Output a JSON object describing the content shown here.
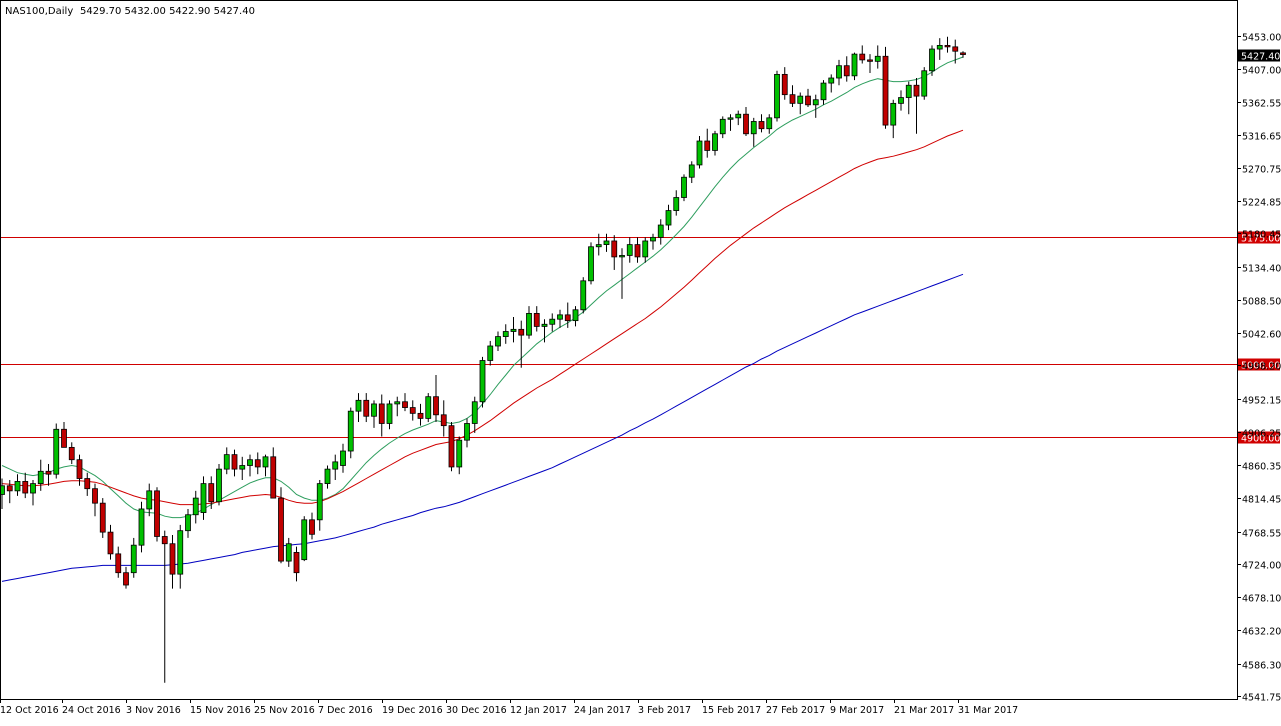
{
  "header": {
    "symbol": "NAS100,Daily",
    "ohlc": "5429.70 5432.00 5422.90 5427.40"
  },
  "colors": {
    "background": "#ffffff",
    "frame": "#000000",
    "bull": "#00c000",
    "bear": "#c00000",
    "ma_fast": "#2e9e5e",
    "ma_mid": "#d00000",
    "ma_slow": "#0000c0",
    "hline": "#d00000"
  },
  "chart_data": {
    "type": "candlestick",
    "title": "NAS100,Daily",
    "grid": false,
    "ylim": [
      4541.75,
      5476.0
    ],
    "y_ticks": [
      "5453.00",
      "5407.00",
      "5362.55",
      "5316.65",
      "5270.75",
      "5224.85",
      "5180.45",
      "5134.40",
      "5088.50",
      "5042.60",
      "4998.20",
      "4952.15",
      "4906.25",
      "4860.35",
      "4814.45",
      "4768.55",
      "4724.00",
      "4678.10",
      "4632.20",
      "4586.30",
      "4541.75"
    ],
    "x_labels": [
      "12 Oct 2016",
      "24 Oct 2016",
      "3 Nov 2016",
      "15 Nov 2016",
      "25 Nov 2016",
      "7 Dec 2016",
      "19 Dec 2016",
      "30 Dec 2016",
      "12 Jan 2017",
      "24 Jan 2017",
      "3 Feb 2017",
      "15 Feb 2017",
      "27 Feb 2017",
      "9 Mar 2017",
      "21 Mar 2017",
      "31 Mar 2017"
    ],
    "current_price": "5427.40",
    "horizontal_lines": [
      "5175.00",
      "5000.00",
      "4900.00"
    ],
    "candles": [
      [
        4820,
        4842,
        4800,
        4832
      ],
      [
        4832,
        4840,
        4808,
        4825
      ],
      [
        4825,
        4848,
        4818,
        4838
      ],
      [
        4838,
        4850,
        4815,
        4822
      ],
      [
        4822,
        4840,
        4805,
        4835
      ],
      [
        4835,
        4868,
        4825,
        4852
      ],
      [
        4852,
        4862,
        4832,
        4848
      ],
      [
        4848,
        4918,
        4842,
        4910
      ],
      [
        4910,
        4920,
        4888,
        4885
      ],
      [
        4885,
        4892,
        4862,
        4868
      ],
      [
        4868,
        4875,
        4832,
        4842
      ],
      [
        4842,
        4850,
        4818,
        4828
      ],
      [
        4828,
        4835,
        4790,
        4808
      ],
      [
        4808,
        4815,
        4760,
        4768
      ],
      [
        4768,
        4778,
        4730,
        4738
      ],
      [
        4738,
        4748,
        4705,
        4712
      ],
      [
        4712,
        4720,
        4690,
        4695
      ],
      [
        4712,
        4760,
        4705,
        4750
      ],
      [
        4750,
        4810,
        4740,
        4800
      ],
      [
        4800,
        4835,
        4790,
        4825
      ],
      [
        4825,
        4830,
        4755,
        4762
      ],
      [
        4762,
        4770,
        4560,
        4752
      ],
      [
        4752,
        4764,
        4690,
        4710
      ],
      [
        4710,
        4778,
        4690,
        4770
      ],
      [
        4770,
        4800,
        4760,
        4792
      ],
      [
        4792,
        4825,
        4780,
        4815
      ],
      [
        4795,
        4845,
        4785,
        4835
      ],
      [
        4835,
        4845,
        4800,
        4810
      ],
      [
        4810,
        4862,
        4805,
        4855
      ],
      [
        4855,
        4885,
        4848,
        4875
      ],
      [
        4875,
        4882,
        4845,
        4855
      ],
      [
        4855,
        4872,
        4840,
        4860
      ],
      [
        4860,
        4875,
        4845,
        4868
      ],
      [
        4868,
        4878,
        4848,
        4858
      ],
      [
        4858,
        4875,
        4845,
        4872
      ],
      [
        4872,
        4885,
        4815,
        4815
      ],
      [
        4815,
        4830,
        4725,
        4728
      ],
      [
        4728,
        4760,
        4720,
        4752
      ],
      [
        4740,
        4748,
        4700,
        4712
      ],
      [
        4730,
        4790,
        4728,
        4785
      ],
      [
        4785,
        4795,
        4758,
        4765
      ],
      [
        4785,
        4840,
        4770,
        4835
      ],
      [
        4835,
        4860,
        4828,
        4855
      ],
      [
        4855,
        4875,
        4840,
        4865
      ],
      [
        4860,
        4890,
        4850,
        4880
      ],
      [
        4880,
        4940,
        4870,
        4935
      ],
      [
        4935,
        4960,
        4920,
        4950
      ],
      [
        4950,
        4960,
        4920,
        4928
      ],
      [
        4928,
        4950,
        4912,
        4945
      ],
      [
        4945,
        4958,
        4900,
        4918
      ],
      [
        4918,
        4950,
        4910,
        4945
      ],
      [
        4945,
        4955,
        4928,
        4948
      ],
      [
        4948,
        4960,
        4935,
        4940
      ],
      [
        4940,
        4950,
        4922,
        4932
      ],
      [
        4932,
        4945,
        4915,
        4925
      ],
      [
        4925,
        4960,
        4920,
        4955
      ],
      [
        4955,
        4985,
        4920,
        4930
      ],
      [
        4930,
        4950,
        4900,
        4915
      ],
      [
        4915,
        4920,
        4852,
        4858
      ],
      [
        4858,
        4900,
        4848,
        4895
      ],
      [
        4895,
        4925,
        4885,
        4918
      ],
      [
        4918,
        4955,
        4905,
        4948
      ],
      [
        4948,
        5010,
        4940,
        5005
      ],
      [
        5005,
        5032,
        4998,
        5025
      ],
      [
        5025,
        5045,
        5018,
        5038
      ],
      [
        5038,
        5055,
        5028,
        5045
      ],
      [
        5045,
        5065,
        5030,
        5048
      ],
      [
        5048,
        5060,
        4995,
        5040
      ],
      [
        5040,
        5080,
        5035,
        5070
      ],
      [
        5070,
        5080,
        5045,
        5052
      ],
      [
        5052,
        5062,
        5030,
        5055
      ],
      [
        5055,
        5070,
        5045,
        5062
      ],
      [
        5062,
        5075,
        5050,
        5068
      ],
      [
        5068,
        5085,
        5050,
        5060
      ],
      [
        5060,
        5080,
        5052,
        5075
      ],
      [
        5075,
        5120,
        5070,
        5115
      ],
      [
        5115,
        5168,
        5110,
        5162
      ],
      [
        5162,
        5180,
        5150,
        5165
      ],
      [
        5165,
        5180,
        5155,
        5170
      ],
      [
        5170,
        5178,
        5130,
        5148
      ],
      [
        5148,
        5160,
        5090,
        5150
      ],
      [
        5150,
        5175,
        5140,
        5165
      ],
      [
        5165,
        5175,
        5140,
        5148
      ],
      [
        5148,
        5175,
        5140,
        5170
      ],
      [
        5170,
        5180,
        5158,
        5175
      ],
      [
        5175,
        5200,
        5165,
        5192
      ],
      [
        5192,
        5220,
        5185,
        5212
      ],
      [
        5212,
        5240,
        5205,
        5230
      ],
      [
        5230,
        5262,
        5225,
        5258
      ],
      [
        5258,
        5280,
        5250,
        5275
      ],
      [
        5275,
        5315,
        5270,
        5308
      ],
      [
        5308,
        5325,
        5285,
        5295
      ],
      [
        5295,
        5322,
        5288,
        5318
      ],
      [
        5318,
        5342,
        5312,
        5338
      ],
      [
        5338,
        5345,
        5322,
        5340
      ],
      [
        5340,
        5350,
        5330,
        5345
      ],
      [
        5345,
        5355,
        5315,
        5318
      ],
      [
        5318,
        5340,
        5300,
        5335
      ],
      [
        5335,
        5345,
        5320,
        5325
      ],
      [
        5325,
        5345,
        5318,
        5340
      ],
      [
        5340,
        5405,
        5335,
        5400
      ],
      [
        5400,
        5410,
        5365,
        5372
      ],
      [
        5372,
        5385,
        5355,
        5360
      ],
      [
        5360,
        5375,
        5345,
        5370
      ],
      [
        5370,
        5380,
        5355,
        5358
      ],
      [
        5358,
        5372,
        5340,
        5365
      ],
      [
        5365,
        5392,
        5358,
        5388
      ],
      [
        5388,
        5400,
        5375,
        5395
      ],
      [
        5395,
        5420,
        5385,
        5412
      ],
      [
        5412,
        5425,
        5390,
        5398
      ],
      [
        5398,
        5430,
        5392,
        5428
      ],
      [
        5428,
        5440,
        5415,
        5420
      ],
      [
        5420,
        5428,
        5402,
        5418
      ],
      [
        5418,
        5440,
        5408,
        5425
      ],
      [
        5425,
        5438,
        5325,
        5330
      ],
      [
        5330,
        5365,
        5312,
        5360
      ],
      [
        5360,
        5378,
        5350,
        5368
      ],
      [
        5368,
        5390,
        5345,
        5385
      ],
      [
        5385,
        5395,
        5318,
        5370
      ],
      [
        5370,
        5410,
        5365,
        5405
      ],
      [
        5405,
        5440,
        5398,
        5435
      ],
      [
        5435,
        5450,
        5420,
        5440
      ],
      [
        5440,
        5452,
        5430,
        5438
      ],
      [
        5438,
        5448,
        5415,
        5432
      ],
      [
        5429.7,
        5432,
        5422.9,
        5427.4
      ]
    ],
    "series": [
      {
        "name": "",
        "type": "ma",
        "values": [
          4860,
          4855,
          4850,
          4848,
          4846,
          4848,
          4850,
          4855,
          4858,
          4860,
          4858,
          4852,
          4846,
          4838,
          4828,
          4818,
          4808,
          4800,
          4796,
          4795,
          4794,
          4790,
          4788,
          4788,
          4790,
          4794,
          4800,
          4806,
          4812,
          4818,
          4824,
          4830,
          4836,
          4840,
          4843,
          4843,
          4838,
          4830,
          4820,
          4815,
          4812,
          4812,
          4815,
          4820,
          4828,
          4840,
          4852,
          4864,
          4874,
          4883,
          4891,
          4898,
          4904,
          4909,
          4913,
          4917,
          4922,
          4920,
          4918,
          4920,
          4925,
          4933,
          4945,
          4958,
          4972,
          4985,
          4998,
          5008,
          5018,
          5028,
          5036,
          5044,
          5051,
          5057,
          5064,
          5072,
          5082,
          5092,
          5101,
          5109,
          5117,
          5125,
          5133,
          5141,
          5149,
          5158,
          5168,
          5179,
          5190,
          5203,
          5217,
          5231,
          5245,
          5258,
          5270,
          5281,
          5290,
          5299,
          5307,
          5315,
          5324,
          5331,
          5337,
          5342,
          5347,
          5352,
          5358,
          5363,
          5369,
          5375,
          5382,
          5387,
          5391,
          5394,
          5392,
          5390,
          5390,
          5391,
          5393,
          5397,
          5403,
          5410,
          5416,
          5420,
          5424
        ]
      },
      {
        "name": "",
        "type": "ma",
        "values": [
          4835,
          4834,
          4833,
          4832,
          4832,
          4833,
          4834,
          4836,
          4838,
          4839,
          4839,
          4838,
          4837,
          4834,
          4830,
          4826,
          4822,
          4818,
          4815,
          4813,
          4812,
          4810,
          4808,
          4806,
          4806,
          4806,
          4807,
          4808,
          4810,
          4812,
          4814,
          4816,
          4818,
          4819,
          4820,
          4819,
          4816,
          4812,
          4809,
          4808,
          4808,
          4810,
          4814,
          4819,
          4824,
          4830,
          4836,
          4842,
          4848,
          4854,
          4860,
          4866,
          4872,
          4877,
          4881,
          4885,
          4889,
          4891,
          4893,
          4897,
          4902,
          4908,
          4915,
          4922,
          4930,
          4938,
          4946,
          4953,
          4960,
          4967,
          4973,
          4979,
          4986,
          4993,
          5000,
          5007,
          5014,
          5021,
          5028,
          5035,
          5042,
          5049,
          5056,
          5063,
          5071,
          5079,
          5088,
          5097,
          5106,
          5116,
          5126,
          5136,
          5146,
          5155,
          5164,
          5172,
          5180,
          5188,
          5195,
          5202,
          5209,
          5216,
          5222,
          5228,
          5234,
          5240,
          5246,
          5252,
          5258,
          5264,
          5270,
          5275,
          5279,
          5283,
          5285,
          5287,
          5290,
          5293,
          5296,
          5300,
          5305,
          5310,
          5315,
          5319,
          5323
        ]
      },
      {
        "name": "",
        "type": "ma",
        "values": [
          4700,
          4702,
          4704,
          4706,
          4708,
          4710,
          4712,
          4714,
          4716,
          4718,
          4719,
          4720,
          4721,
          4722,
          4722,
          4722,
          4722,
          4722,
          4722,
          4722,
          4722,
          4722,
          4723,
          4724,
          4725,
          4727,
          4729,
          4731,
          4733,
          4735,
          4737,
          4740,
          4742,
          4744,
          4746,
          4748,
          4749,
          4750,
          4751,
          4752,
          4754,
          4756,
          4758,
          4760,
          4763,
          4766,
          4769,
          4772,
          4775,
          4779,
          4782,
          4785,
          4788,
          4791,
          4795,
          4798,
          4801,
          4803,
          4806,
          4809,
          4813,
          4817,
          4821,
          4825,
          4829,
          4833,
          4837,
          4841,
          4845,
          4849,
          4853,
          4857,
          4862,
          4867,
          4872,
          4877,
          4882,
          4887,
          4892,
          4897,
          4902,
          4908,
          4913,
          4919,
          4924,
          4930,
          4936,
          4942,
          4948,
          4954,
          4960,
          4966,
          4972,
          4978,
          4984,
          4990,
          4996,
          5001,
          5007,
          5012,
          5018,
          5023,
          5028,
          5033,
          5038,
          5043,
          5048,
          5053,
          5058,
          5063,
          5068,
          5072,
          5076,
          5080,
          5084,
          5088,
          5092,
          5096,
          5100,
          5104,
          5108,
          5112,
          5116,
          5120,
          5124
        ]
      }
    ]
  }
}
